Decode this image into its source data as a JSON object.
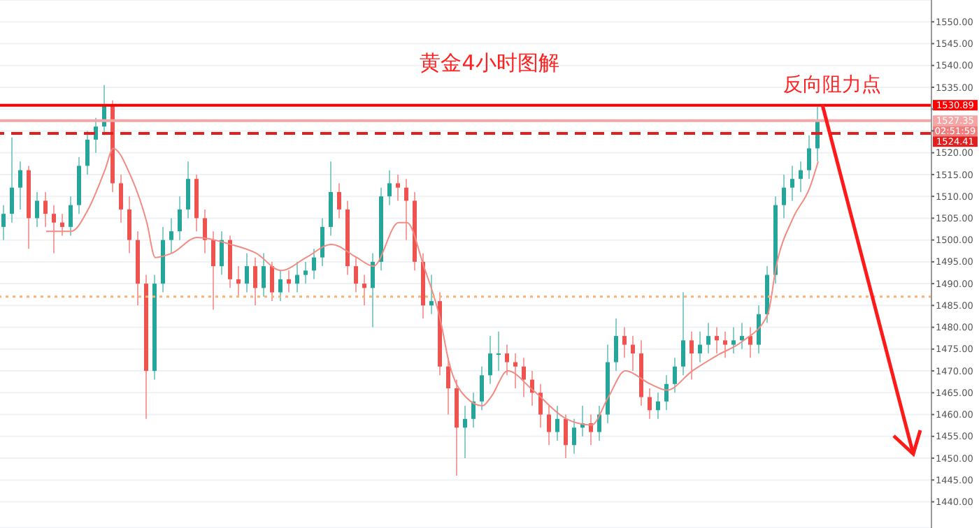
{
  "chart_data": {
    "type": "candlestick",
    "title": "黄金4小时图解",
    "categories": [
      null,
      null,
      null,
      null,
      null,
      null,
      null,
      null,
      null,
      null,
      null,
      null,
      null,
      null,
      null,
      null,
      null,
      null,
      null,
      null,
      null,
      null,
      null,
      null,
      null,
      null,
      null,
      null,
      null,
      null,
      null,
      null,
      null,
      null,
      null,
      null,
      null,
      null,
      null,
      null,
      null,
      null,
      null,
      null,
      null,
      null,
      null,
      null,
      null,
      null,
      null,
      null,
      null,
      null,
      null,
      null,
      null,
      null,
      null,
      null,
      null,
      null,
      null,
      null,
      null,
      null,
      null,
      null,
      null,
      null,
      null,
      null,
      null,
      null,
      null,
      null,
      null,
      null,
      null,
      null,
      null,
      null,
      null,
      null,
      null,
      null,
      null,
      null,
      null,
      null,
      null,
      null,
      null,
      null,
      null,
      null,
      null,
      null,
      null,
      null,
      null,
      null,
      null,
      null,
      null,
      null,
      null,
      null,
      null,
      null,
      null
    ],
    "ohlc": [
      [
        1503,
        1508,
        1500,
        1506
      ],
      [
        1506,
        1523.5,
        1504,
        1512
      ],
      [
        1512,
        1518,
        1507,
        1516
      ],
      [
        1516,
        1517,
        1498,
        1505
      ],
      [
        1505,
        1511,
        1503,
        1509
      ],
      [
        1509,
        1511,
        1503,
        1506
      ],
      [
        1506,
        1508,
        1497,
        1504
      ],
      [
        1504,
        1506,
        1501,
        1503
      ],
      [
        1503,
        1510,
        1501,
        1508
      ],
      [
        1508,
        1519,
        1506,
        1517
      ],
      [
        1517,
        1525,
        1515,
        1523
      ],
      [
        1523,
        1528,
        1520,
        1526
      ],
      [
        1526,
        1535.5,
        1524,
        1531
      ],
      [
        1531,
        1532,
        1511,
        1513
      ],
      [
        1513,
        1515,
        1504,
        1507
      ],
      [
        1507,
        1510,
        1497,
        1500
      ],
      [
        1500,
        1502,
        1485,
        1490
      ],
      [
        1490,
        1492,
        1459,
        1470
      ],
      [
        1470,
        1492,
        1468,
        1490
      ],
      [
        1490,
        1503,
        1488,
        1500
      ],
      [
        1500,
        1505,
        1497,
        1502
      ],
      [
        1502,
        1510,
        1500,
        1507
      ],
      [
        1507,
        1518,
        1505,
        1514
      ],
      [
        1514,
        1515,
        1502,
        1505
      ],
      [
        1505,
        1507,
        1497,
        1500
      ],
      [
        1500,
        1502,
        1484,
        1494
      ],
      [
        1494,
        1502,
        1492,
        1500
      ],
      [
        1500,
        1501,
        1489,
        1491
      ],
      [
        1491,
        1494,
        1487,
        1490
      ],
      [
        1490,
        1497,
        1488,
        1494
      ],
      [
        1494,
        1496,
        1485,
        1489
      ],
      [
        1489,
        1497,
        1487,
        1494
      ],
      [
        1494,
        1495,
        1486,
        1488
      ],
      [
        1488,
        1493,
        1486,
        1491
      ],
      [
        1491,
        1493,
        1488,
        1490
      ],
      [
        1490,
        1495,
        1488,
        1492
      ],
      [
        1492,
        1495,
        1490,
        1493
      ],
      [
        1493,
        1498,
        1491,
        1496
      ],
      [
        1496,
        1505,
        1494,
        1503
      ],
      [
        1503,
        1518,
        1501,
        1511
      ],
      [
        1511,
        1513,
        1505,
        1507
      ],
      [
        1507,
        1509,
        1492,
        1494
      ],
      [
        1494,
        1496,
        1488,
        1490
      ],
      [
        1490,
        1492,
        1485,
        1489
      ],
      [
        1489,
        1497,
        1480,
        1495
      ],
      [
        1495,
        1512,
        1493,
        1510
      ],
      [
        1510,
        1516,
        1508,
        1513
      ],
      [
        1513,
        1515,
        1509,
        1512
      ],
      [
        1512,
        1514,
        1500,
        1509
      ],
      [
        1509,
        1511,
        1493,
        1495
      ],
      [
        1495,
        1497,
        1482,
        1485
      ],
      [
        1485,
        1492,
        1483,
        1486
      ],
      [
        1486,
        1488,
        1469,
        1471
      ],
      [
        1471,
        1473,
        1460,
        1466
      ],
      [
        1466,
        1468,
        1446,
        1457
      ],
      [
        1457,
        1462,
        1450,
        1459
      ],
      [
        1459,
        1465,
        1457,
        1463
      ],
      [
        1463,
        1471,
        1461,
        1469
      ],
      [
        1469,
        1478,
        1467,
        1474
      ],
      [
        1474,
        1479,
        1470,
        1474
      ],
      [
        1474,
        1476,
        1469,
        1472
      ],
      [
        1472,
        1474,
        1466,
        1471
      ],
      [
        1471,
        1473,
        1464,
        1468
      ],
      [
        1468,
        1470,
        1462,
        1465
      ],
      [
        1465,
        1467,
        1457,
        1460
      ],
      [
        1460,
        1462,
        1453,
        1456
      ],
      [
        1456,
        1462,
        1454,
        1459
      ],
      [
        1459,
        1460,
        1450,
        1453
      ],
      [
        1453,
        1459,
        1451,
        1457
      ],
      [
        1457,
        1462,
        1455,
        1458
      ],
      [
        1458,
        1460,
        1453,
        1456
      ],
      [
        1456,
        1462,
        1454,
        1460
      ],
      [
        1460,
        1476,
        1458,
        1472
      ],
      [
        1472,
        1482,
        1470,
        1478
      ],
      [
        1478,
        1480,
        1473,
        1476
      ],
      [
        1476,
        1478,
        1470,
        1474
      ],
      [
        1474,
        1477,
        1462,
        1464
      ],
      [
        1464,
        1466,
        1459,
        1461
      ],
      [
        1461,
        1465,
        1459,
        1463
      ],
      [
        1463,
        1469,
        1461,
        1467
      ],
      [
        1467,
        1473,
        1465,
        1471
      ],
      [
        1471,
        1488,
        1469,
        1477
      ],
      [
        1477,
        1479,
        1468,
        1474
      ],
      [
        1474,
        1479,
        1472,
        1476
      ],
      [
        1476,
        1481,
        1474,
        1478
      ],
      [
        1478,
        1480,
        1474,
        1477
      ],
      [
        1477,
        1479,
        1473,
        1476
      ],
      [
        1476,
        1480,
        1474,
        1477
      ],
      [
        1477,
        1481,
        1475,
        1478
      ],
      [
        1478,
        1480,
        1473,
        1476
      ],
      [
        1476,
        1485,
        1474,
        1483
      ],
      [
        1483,
        1494,
        1481,
        1492
      ],
      [
        1492,
        1510,
        1490,
        1508
      ],
      [
        1508,
        1515,
        1505,
        1512
      ],
      [
        1512,
        1517,
        1509,
        1514
      ],
      [
        1514,
        1518,
        1511,
        1516
      ],
      [
        1516,
        1524,
        1514,
        1521
      ],
      [
        1521,
        1530.5,
        1518,
        1527.35
      ],
      null,
      null,
      null,
      null,
      null,
      null,
      null,
      null,
      null,
      null,
      null,
      null,
      null
    ],
    "series": [
      {
        "type": "line",
        "color": "#f28b82",
        "values": [
          null,
          null,
          null,
          null,
          null,
          1502,
          null,
          null,
          1502,
          null,
          1507,
          null,
          1516,
          1521,
          null,
          1515,
          null,
          1504,
          1496,
          null,
          1497,
          null,
          null,
          1500.6,
          null,
          null,
          null,
          1499,
          null,
          null,
          1497,
          null,
          null,
          1493,
          null,
          null,
          1496,
          null,
          null,
          1499,
          null,
          null,
          1496,
          null,
          1494,
          null,
          null,
          1504,
          1504,
          null,
          1494,
          null,
          1481.5,
          1472,
          null,
          1464,
          null,
          1462,
          1464,
          null,
          1470,
          null,
          null,
          1465.6,
          null,
          null,
          null,
          1459,
          null,
          null,
          1457.6,
          null,
          1464,
          null,
          1470,
          null,
          null,
          1467,
          null,
          1465.6,
          null,
          null,
          1470,
          null,
          null,
          1473.6,
          null,
          null,
          1476.8,
          null,
          null,
          1483,
          1494,
          null,
          1505,
          null,
          1512,
          1518,
          null,
          null,
          null,
          null,
          null,
          null,
          null,
          null,
          null,
          null,
          null,
          null,
          null
        ]
      }
    ],
    "ylim": [
      1434,
      1555
    ],
    "yticks": [
      {
        "value": 1440,
        "label": "1440.00"
      },
      {
        "value": 1445,
        "label": "1445.00"
      },
      {
        "value": 1450,
        "label": "1450.00"
      },
      {
        "value": 1455,
        "label": "1455.00"
      },
      {
        "value": 1460,
        "label": "1460.00"
      },
      {
        "value": 1465,
        "label": "1465.00"
      },
      {
        "value": 1470,
        "label": "1470.00"
      },
      {
        "value": 1475,
        "label": "1475.00"
      },
      {
        "value": 1480,
        "label": "1480.00"
      },
      {
        "value": 1485,
        "label": "1485.00"
      },
      {
        "value": 1490,
        "label": "1490.00"
      },
      {
        "value": 1495,
        "label": "1495.00"
      },
      {
        "value": 1500,
        "label": "1500.00"
      },
      {
        "value": 1505,
        "label": "1505.00"
      },
      {
        "value": 1510,
        "label": "1510.00"
      },
      {
        "value": 1515,
        "label": "1515.00"
      },
      {
        "value": 1520,
        "label": "1520.00"
      },
      {
        "value": 1525,
        "label": null
      },
      {
        "value": 1530,
        "label": null
      },
      {
        "value": 1535,
        "label": "1535.00"
      },
      {
        "value": 1540,
        "label": "1540.00"
      },
      {
        "value": 1545,
        "label": "1545.00"
      },
      {
        "value": 1550,
        "label": "1550.00"
      }
    ],
    "tick_labels": "y",
    "grid": "y",
    "ref_lines": [
      {
        "axis": "y",
        "value": 1530.89,
        "label": "1530.89",
        "color": "#ff0000",
        "line_style": "solid"
      },
      {
        "axis": "y",
        "value": 1527.35,
        "label": "1527.35",
        "color": "#f4a6a6",
        "line_style": "solid"
      },
      {
        "axis": "y",
        "value": 1524.41,
        "label": "1524.41",
        "color": "#e02020",
        "line_style": "dashed"
      },
      {
        "axis": "y",
        "value": 1487,
        "label": null,
        "color": "#f7b27a",
        "line_style": "dotted"
      }
    ],
    "annotations": [
      "反向阻力点",
      "02:51:59"
    ]
  }
}
